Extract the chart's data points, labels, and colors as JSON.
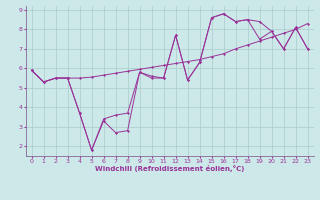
{
  "xlabel": "Windchill (Refroidissement éolien,°C)",
  "background_color": "#cce8e8",
  "grid_color": "#aacccc",
  "line_color": "#993399",
  "spine_color": "#886699",
  "x_min": 0,
  "x_max": 23,
  "y_min": 1.5,
  "y_max": 9.2,
  "yticks": [
    2,
    3,
    4,
    5,
    6,
    7,
    8,
    9
  ],
  "series1_y": [
    5.9,
    5.3,
    5.5,
    5.5,
    5.5,
    5.55,
    5.65,
    5.75,
    5.85,
    5.95,
    6.05,
    6.15,
    6.25,
    6.35,
    6.45,
    6.6,
    6.75,
    7.0,
    7.2,
    7.4,
    7.6,
    7.8,
    8.0,
    8.3
  ],
  "series2_y": [
    5.9,
    5.3,
    5.5,
    5.5,
    3.7,
    1.8,
    3.4,
    3.6,
    3.7,
    5.8,
    5.6,
    5.5,
    7.7,
    5.4,
    6.3,
    8.6,
    8.8,
    8.4,
    8.5,
    8.4,
    7.9,
    7.0,
    8.1,
    7.0
  ],
  "series3_y": [
    5.9,
    5.3,
    5.5,
    5.5,
    3.7,
    1.8,
    3.3,
    2.7,
    2.8,
    5.8,
    5.5,
    5.5,
    7.7,
    5.4,
    6.3,
    8.6,
    8.8,
    8.4,
    8.5,
    7.5,
    7.9,
    7.0,
    8.1,
    7.0
  ],
  "tick_labelsize": 4.5,
  "xlabel_fontsize": 5.0
}
